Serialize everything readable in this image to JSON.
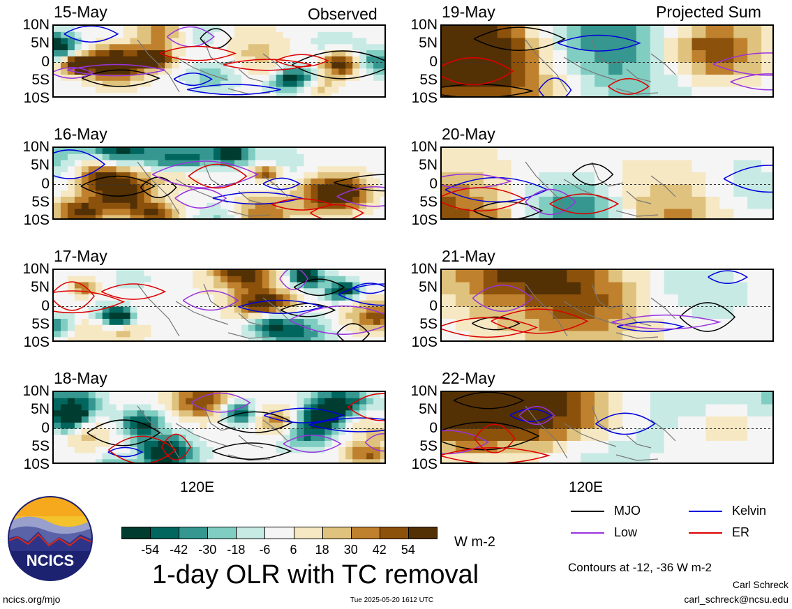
{
  "headers": {
    "observed": "Observed",
    "projected": "Projected Sum"
  },
  "y_ticks": [
    "10N",
    "5N",
    "0",
    "5S",
    "10S"
  ],
  "x_tick": "120E",
  "panels_left": [
    {
      "date": "15-May"
    },
    {
      "date": "16-May"
    },
    {
      "date": "17-May"
    },
    {
      "date": "18-May"
    }
  ],
  "panels_right": [
    {
      "date": "19-May"
    },
    {
      "date": "20-May"
    },
    {
      "date": "21-May"
    },
    {
      "date": "22-May"
    }
  ],
  "colorbar": {
    "colors": [
      "#003c30",
      "#01665e",
      "#35978f",
      "#80cdc1",
      "#c7eae5",
      "#f5f5f5",
      "#f6e8c3",
      "#dfc27d",
      "#bf812d",
      "#8c510a",
      "#543005"
    ],
    "labels": [
      "-54",
      "-42",
      "-30",
      "-18",
      "-6",
      "6",
      "18",
      "30",
      "42",
      "54"
    ],
    "units": "W m-2"
  },
  "legend": [
    {
      "label": "MJO",
      "color": "#000000"
    },
    {
      "label": "Kelvin",
      "color": "#0000dd"
    },
    {
      "label": "Low",
      "color": "#9933dd"
    },
    {
      "label": "ER",
      "color": "#dd0000"
    }
  ],
  "contour_note": "Contours at -12, -36 W m-2",
  "title": "1-day OLR with TC removal",
  "logo_text": "NCICS",
  "footer": {
    "left": "ncics.org/mjo",
    "center": "Tue 2025-05-20 1612 UTC",
    "author": "Carl Schreck",
    "email": "carl_schreck@ncsu.edu"
  },
  "chart_data": {
    "type": "heatmap",
    "title": "1-day OLR with TC removal",
    "units": "W m-2",
    "ylim": [
      "10S",
      "10N"
    ],
    "contour_levels": [
      -12,
      -36
    ],
    "panels": [
      {
        "date": "15-May",
        "type": "Observed"
      },
      {
        "date": "16-May",
        "type": "Observed"
      },
      {
        "date": "17-May",
        "type": "Observed"
      },
      {
        "date": "18-May",
        "type": "Observed"
      },
      {
        "date": "19-May",
        "type": "Projected Sum"
      },
      {
        "date": "20-May",
        "type": "Projected Sum"
      },
      {
        "date": "21-May",
        "type": "Projected Sum"
      },
      {
        "date": "22-May",
        "type": "Projected Sum"
      }
    ]
  }
}
